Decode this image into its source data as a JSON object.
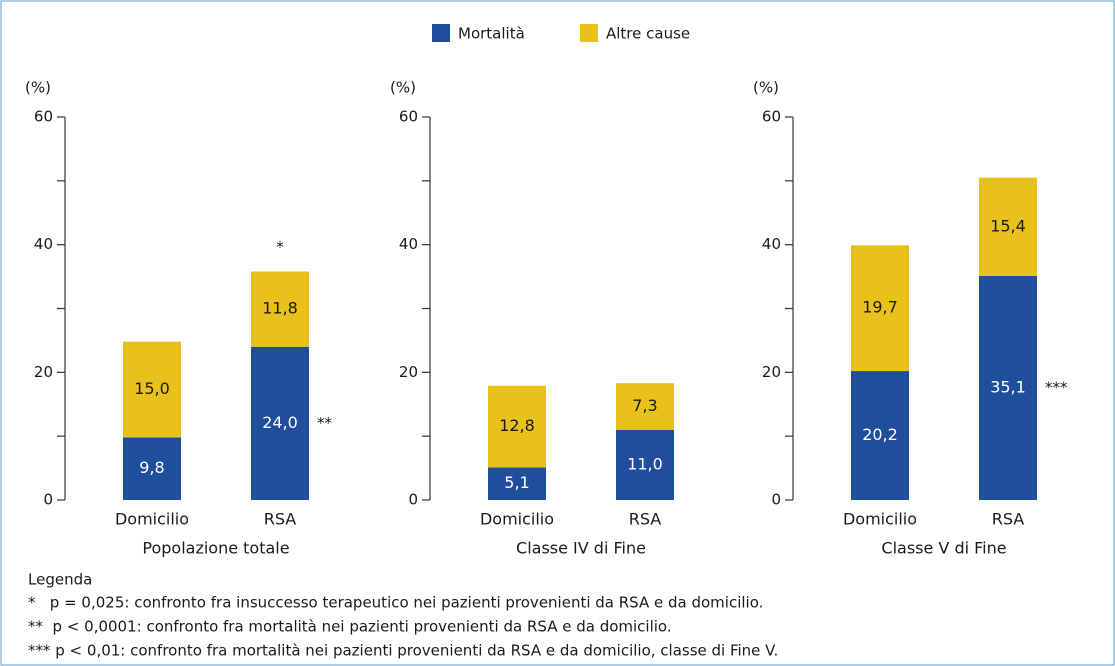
{
  "chart_data": [
    {
      "type": "bar",
      "stacked": true,
      "unit_label": "(%)",
      "x_label": "Popolazione totale",
      "categories": [
        "Domicilio",
        "RSA"
      ],
      "series": [
        {
          "name": "Mortalità",
          "color": "#1f4e9c",
          "values": [
            9.8,
            24.0
          ],
          "value_labels": [
            "9,8",
            "24,0"
          ]
        },
        {
          "name": "Altre cause",
          "color": "#e8c21a",
          "values": [
            15.0,
            11.8
          ],
          "value_labels": [
            "15,0",
            "11,8"
          ]
        }
      ],
      "ylim": [
        0,
        60
      ],
      "yticks": [
        0,
        20,
        40,
        60
      ],
      "minor_yticks": [
        10,
        30,
        50
      ],
      "annotations": [
        "*",
        "**"
      ]
    },
    {
      "type": "bar",
      "stacked": true,
      "unit_label": "(%)",
      "x_label": "Classe IV di Fine",
      "categories": [
        "Domicilio",
        "RSA"
      ],
      "series": [
        {
          "color": "#1f4e9c",
          "values": [
            5.1,
            11.0
          ],
          "value_labels": [
            "5,1",
            "11,0"
          ]
        },
        {
          "color": "#e8c21a",
          "values": [
            12.8,
            7.3
          ],
          "value_labels": [
            "12,8",
            "7,3"
          ]
        }
      ],
      "ylim": [
        0,
        60
      ],
      "yticks": [
        0,
        20,
        40,
        60
      ],
      "minor_yticks": [
        10,
        30,
        50
      ]
    },
    {
      "type": "bar",
      "stacked": true,
      "unit_label": "(%)",
      "x_label": "Classe V di Fine",
      "categories": [
        "Domicilio",
        "RSA"
      ],
      "series": [
        {
          "color": "#1f4e9c",
          "values": [
            20.2,
            35.1
          ],
          "value_labels": [
            "20,2",
            "35,1"
          ]
        },
        {
          "color": "#e8c21a",
          "values": [
            19.7,
            15.4
          ],
          "value_labels": [
            "19,7",
            "15,4"
          ]
        }
      ],
      "ylim": [
        0,
        60
      ],
      "yticks": [
        0,
        20,
        40,
        60
      ],
      "minor_yticks": [
        10,
        30,
        50
      ],
      "annotations": [
        "***"
      ]
    }
  ],
  "notes": {
    "title": "Legenda",
    "items": [
      "*   p = 0,025: confronto fra insuccesso terapeutico nei pazienti provenienti da RSA e da domicilio.",
      "**  p < 0,0001: confronto fra mortalità nei pazienti provenienti da RSA e da domicilio.",
      "*** p < 0,01: confronto fra mortalità nei pazienti provenienti da RSA e da domicilio, classe di Fine V."
    ]
  }
}
